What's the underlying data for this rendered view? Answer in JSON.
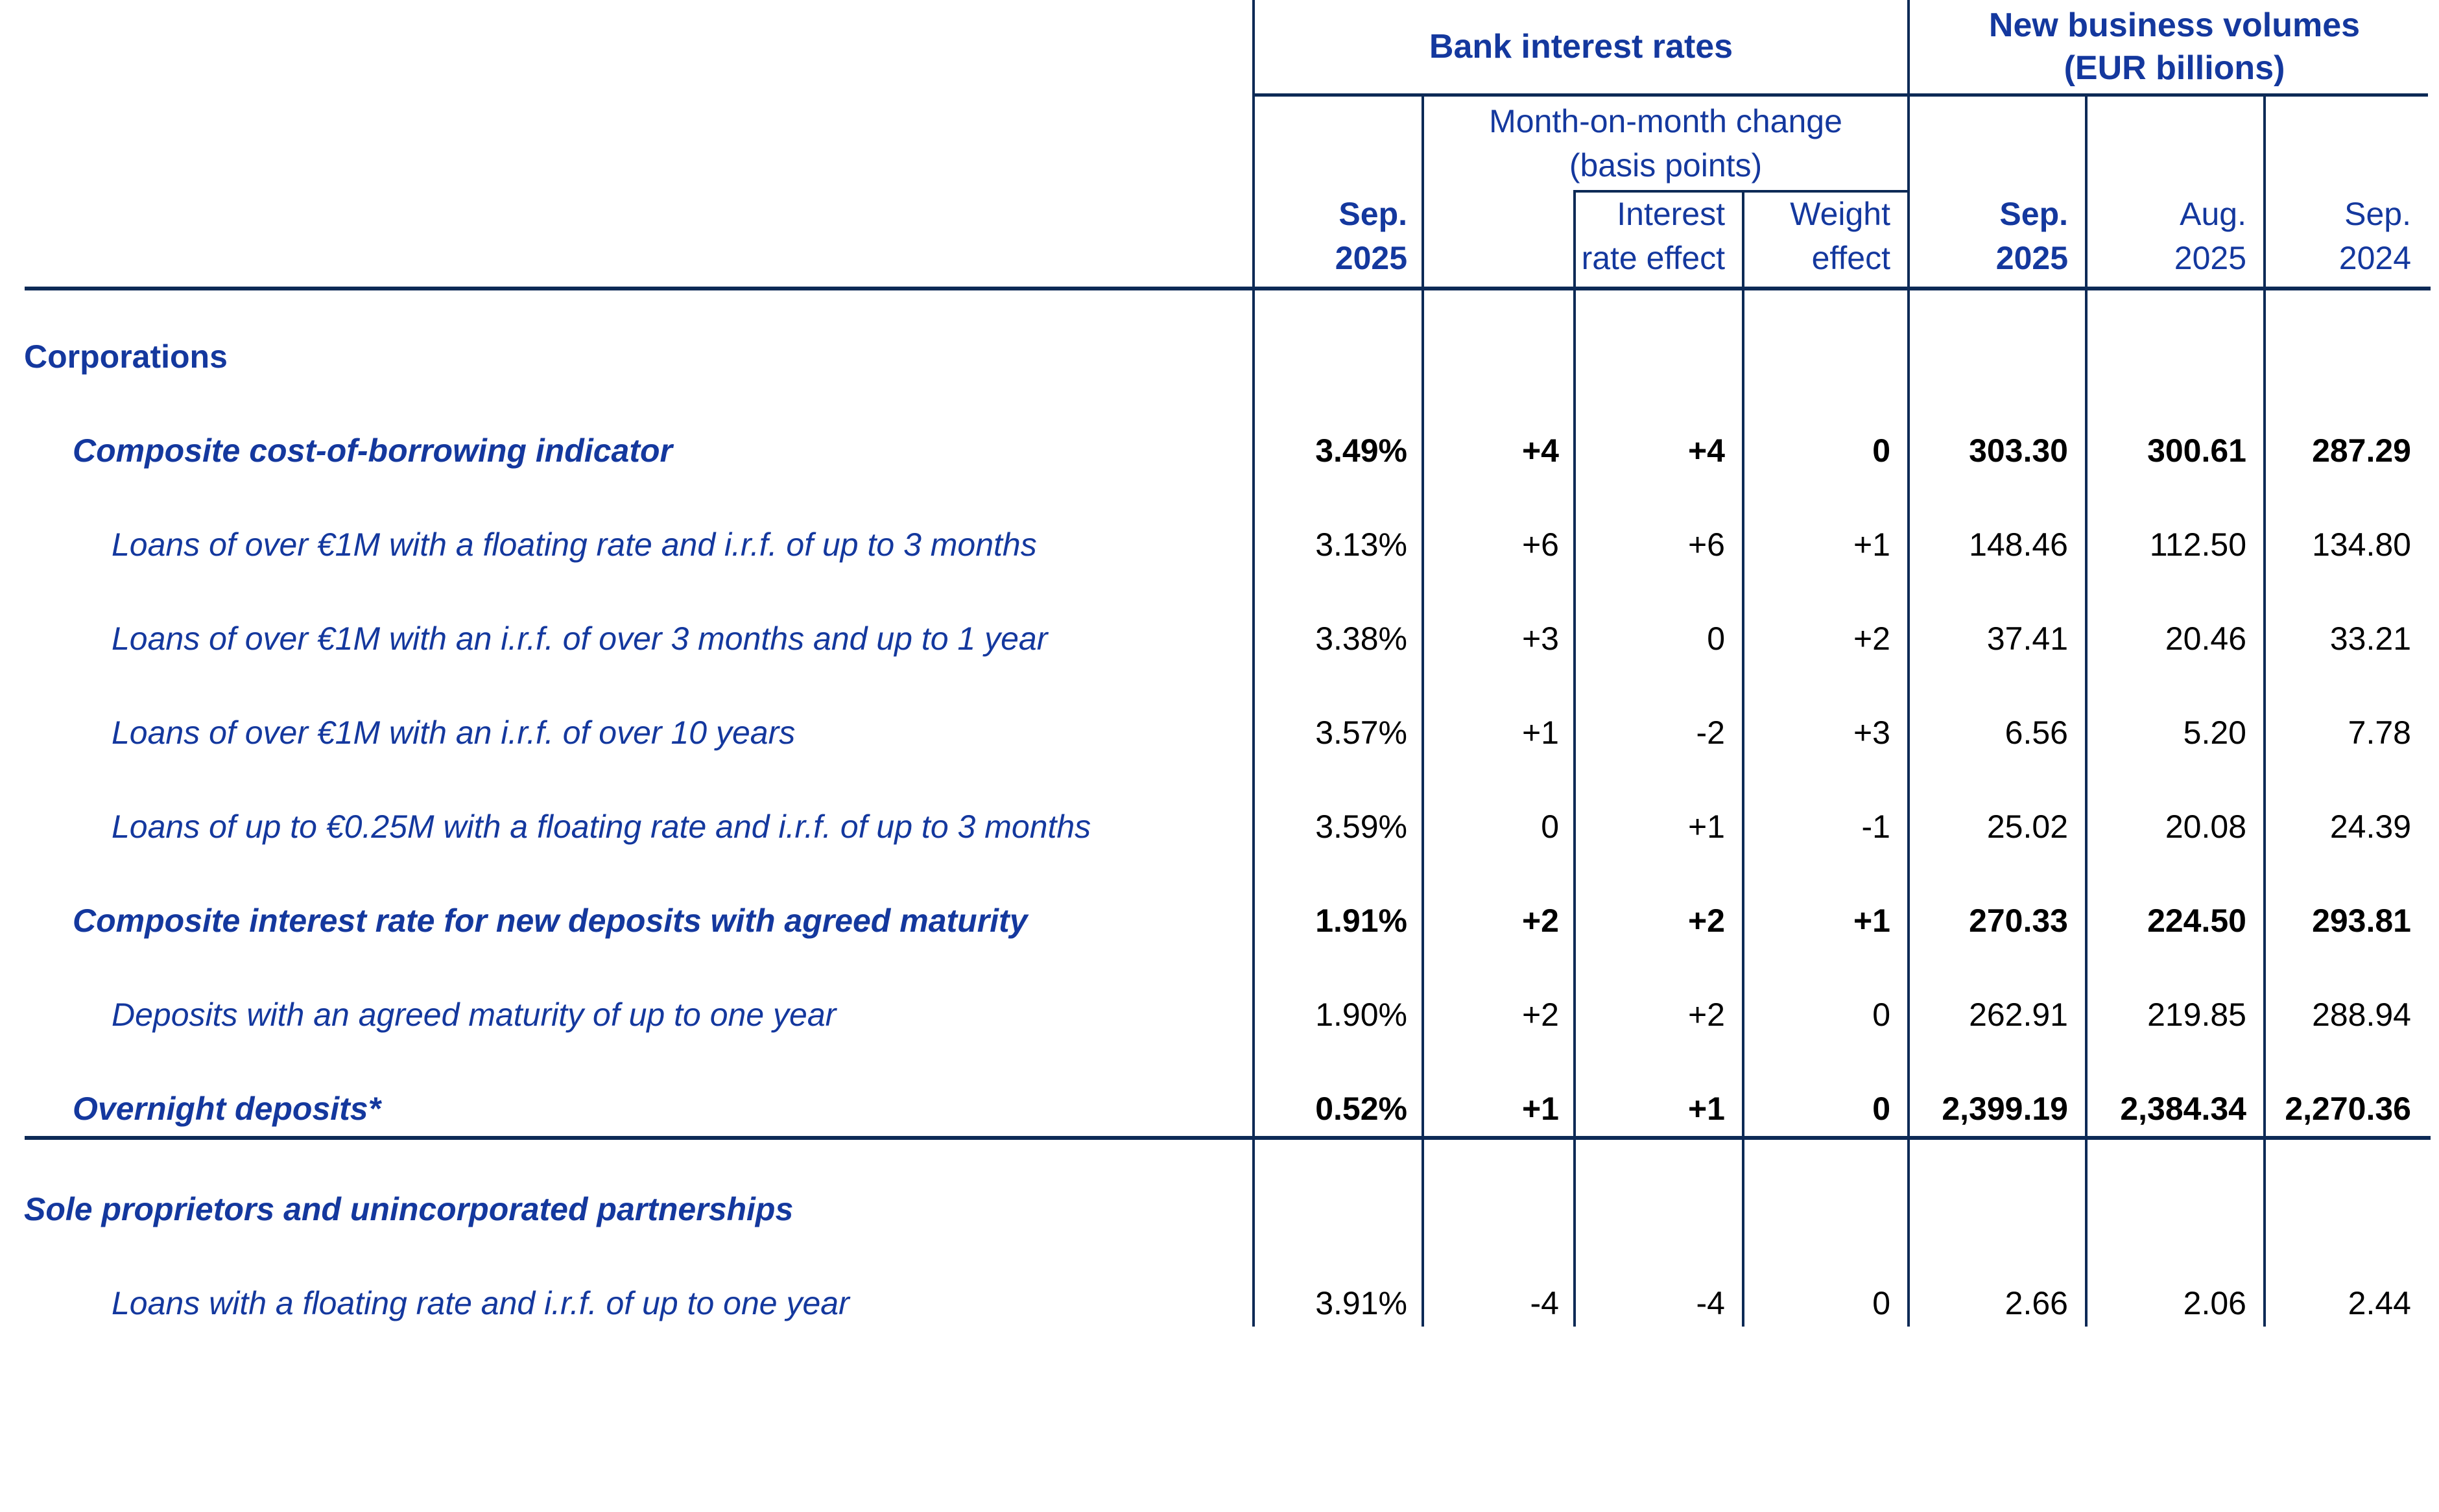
{
  "table": {
    "group_headers": {
      "rates": "Bank interest rates",
      "volumes_line1": "New business volumes",
      "volumes_line2": "(EUR billions)"
    },
    "change_group": {
      "line1": "Month-on-month change",
      "line2": "(basis points)"
    },
    "columns": [
      {
        "id": "rate_sep_2025",
        "line1": "Sep.",
        "line2": "2025"
      },
      {
        "id": "mom_change",
        "line1": "",
        "line2": ""
      },
      {
        "id": "interest_rate_effect",
        "line1": "Interest",
        "line2": "rate effect"
      },
      {
        "id": "weight_effect",
        "line1": "Weight",
        "line2": "effect"
      },
      {
        "id": "volume_sep_2025",
        "line1": "Sep.",
        "line2": "2025"
      },
      {
        "id": "volume_aug_2025",
        "line1": "Aug.",
        "line2": "2025"
      },
      {
        "id": "volume_sep_2024",
        "line1": "Sep.",
        "line2": "2024"
      }
    ],
    "rows": [
      {
        "label": "Corporations",
        "type": "section",
        "values": [
          "",
          "",
          "",
          "",
          "",
          "",
          ""
        ]
      },
      {
        "label": "Composite cost-of-borrowing indicator",
        "type": "l1",
        "values": [
          "3.49%",
          "+4",
          "+4",
          "0",
          "303.30",
          "300.61",
          "287.29"
        ]
      },
      {
        "label": "Loans of over €1M with a floating rate and i.r.f. of up to 3 months",
        "type": "l2",
        "values": [
          "3.13%",
          "+6",
          "+6",
          "+1",
          "148.46",
          "112.50",
          "134.80"
        ]
      },
      {
        "label": "Loans of over €1M with an i.r.f. of over 3 months and up to 1 year",
        "type": "l2",
        "values": [
          "3.38%",
          "+3",
          "0",
          "+2",
          "37.41",
          "20.46",
          "33.21"
        ]
      },
      {
        "label": "Loans of over €1M with an i.r.f. of over 10 years",
        "type": "l2",
        "values": [
          "3.57%",
          "+1",
          "-2",
          "+3",
          "6.56",
          "5.20",
          "7.78"
        ]
      },
      {
        "label": "Loans of up to €0.25M with a floating rate and i.r.f. of up to 3 months",
        "type": "l2",
        "values": [
          "3.59%",
          "0",
          "+1",
          "-1",
          "25.02",
          "20.08",
          "24.39"
        ]
      },
      {
        "label": "Composite interest rate for new deposits with agreed maturity",
        "type": "l1",
        "values": [
          "1.91%",
          "+2",
          "+2",
          "+1",
          "270.33",
          "224.50",
          "293.81"
        ]
      },
      {
        "label": "Deposits with an agreed maturity of up to one year",
        "type": "l2",
        "values": [
          "1.90%",
          "+2",
          "+2",
          "0",
          "262.91",
          "219.85",
          "288.94"
        ]
      },
      {
        "label": "Overnight deposits*",
        "type": "l1",
        "values": [
          "0.52%",
          "+1",
          "+1",
          "0",
          "2,399.19",
          "2,384.34",
          "2,270.36"
        ]
      },
      {
        "label": "Sole proprietors and unincorporated partnerships",
        "type": "section-italic",
        "values": [
          "",
          "",
          "",
          "",
          "",
          "",
          ""
        ]
      },
      {
        "label": "Loans with a floating rate and i.r.f. of up to one year",
        "type": "l2",
        "values": [
          "3.91%",
          "-4",
          "-4",
          "0",
          "2.66",
          "2.06",
          "2.44"
        ]
      }
    ]
  }
}
